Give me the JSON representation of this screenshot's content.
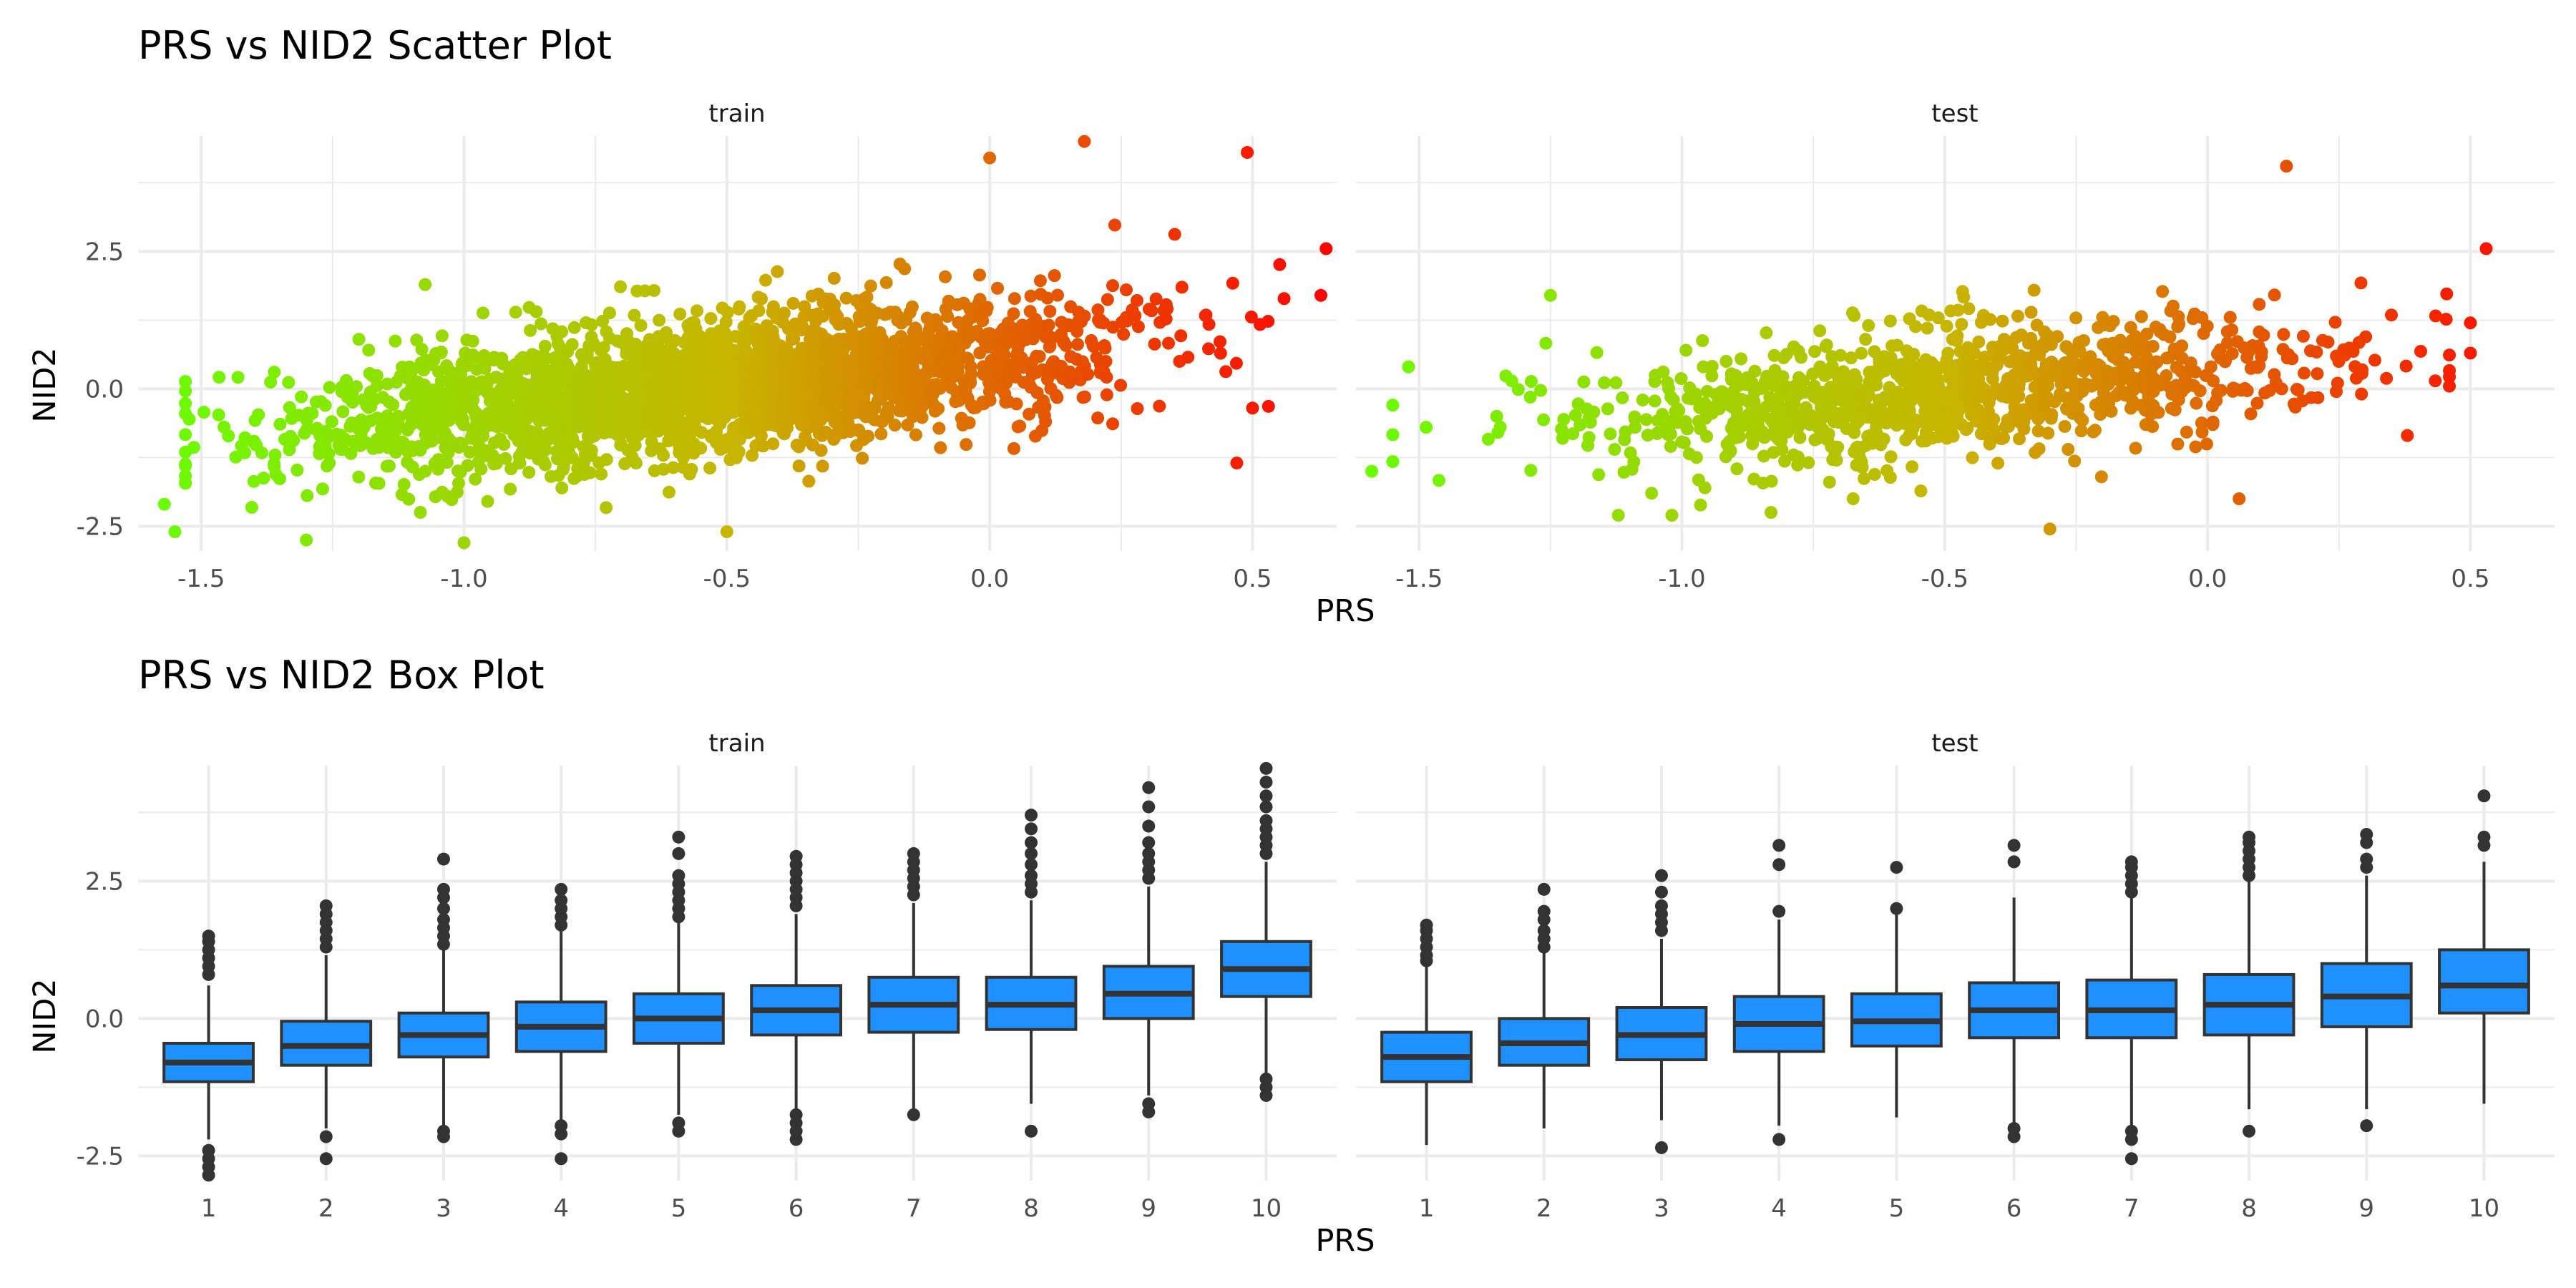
{
  "scatter": {
    "title": "PRS vs NID2 Scatter Plot",
    "xlabel": "PRS",
    "ylabel": "NID2"
  },
  "box": {
    "title": "PRS vs NID2 Box Plot",
    "xlabel": "PRS",
    "ylabel": "NID2"
  },
  "colors": {
    "low": "#66ff00",
    "mid": "#c8b400",
    "high": "#ff0000",
    "box_fill": "#1e90ff",
    "outline": "#333333",
    "grid": "#ebebeb"
  },
  "chart_data": [
    {
      "type": "scatter",
      "title": "PRS vs NID2 Scatter Plot",
      "xlabel": "PRS",
      "ylabel": "NID2",
      "xlim": [
        -1.62,
        0.66
      ],
      "ylim": [
        -2.95,
        4.6
      ],
      "x_ticks": [
        "-1.5",
        "-1.0",
        "-0.5",
        "0.0",
        "0.5"
      ],
      "y_ticks": [
        "-2.5",
        "0.0",
        "2.5"
      ],
      "grid": true,
      "color_by": "PRS",
      "facets": [
        {
          "name": "train",
          "n_points": 2600,
          "x_center": -0.55,
          "x_spread": 0.38,
          "x_min": -1.58,
          "x_max": 0.64,
          "trend_intercept": 0.6,
          "trend_slope": 1.0,
          "noise_sd": 0.62,
          "y_min": -2.9,
          "y_max": 4.5,
          "extreme_points": [
            {
              "x": -1.57,
              "y": -2.1
            },
            {
              "x": -1.55,
              "y": -2.6
            },
            {
              "x": -1.3,
              "y": -2.75
            },
            {
              "x": -1.2,
              "y": 0.9
            },
            {
              "x": -1.0,
              "y": -2.8
            },
            {
              "x": 0.18,
              "y": 4.5
            },
            {
              "x": 0.0,
              "y": 4.2
            },
            {
              "x": 0.49,
              "y": 4.3
            },
            {
              "x": 0.64,
              "y": 2.55
            },
            {
              "x": 0.63,
              "y": 1.7
            },
            {
              "x": 0.47,
              "y": -1.35
            },
            {
              "x": 0.5,
              "y": -0.35
            },
            {
              "x": -0.5,
              "y": -2.6
            }
          ]
        },
        {
          "name": "test",
          "n_points": 1100,
          "x_center": -0.48,
          "x_spread": 0.36,
          "x_min": -1.6,
          "x_max": 0.54,
          "trend_intercept": 0.35,
          "trend_slope": 0.8,
          "noise_sd": 0.58,
          "y_min": -2.6,
          "y_max": 4.1,
          "extreme_points": [
            {
              "x": -1.59,
              "y": -1.5
            },
            {
              "x": -1.52,
              "y": 0.4
            },
            {
              "x": -1.25,
              "y": 1.7
            },
            {
              "x": -0.3,
              "y": -2.55
            },
            {
              "x": 0.15,
              "y": 4.05
            },
            {
              "x": 0.53,
              "y": 2.55
            },
            {
              "x": 0.5,
              "y": 1.2
            },
            {
              "x": 0.5,
              "y": 0.65
            },
            {
              "x": 0.38,
              "y": -0.85
            },
            {
              "x": 0.06,
              "y": -2.0
            }
          ]
        }
      ]
    },
    {
      "type": "box",
      "title": "PRS vs NID2 Box Plot",
      "xlabel": "PRS",
      "ylabel": "NID2",
      "categories": [
        "1",
        "2",
        "3",
        "4",
        "5",
        "6",
        "7",
        "8",
        "9",
        "10"
      ],
      "ylim": [
        -2.95,
        4.6
      ],
      "y_ticks": [
        "-2.5",
        "0.0",
        "2.5"
      ],
      "grid": true,
      "facets": [
        {
          "name": "train",
          "boxes": [
            {
              "q1": -1.15,
              "median": -0.8,
              "q3": -0.45,
              "whisker_low": -2.2,
              "whisker_high": 0.6,
              "outliers": [
                -2.4,
                -2.55,
                -2.7,
                -2.85,
                0.8,
                0.95,
                1.1,
                1.25,
                1.4,
                1.5
              ]
            },
            {
              "q1": -0.85,
              "median": -0.5,
              "q3": -0.05,
              "whisker_low": -2.0,
              "whisker_high": 1.15,
              "outliers": [
                -2.15,
                -2.55,
                1.3,
                1.45,
                1.6,
                1.75,
                1.9,
                2.05
              ]
            },
            {
              "q1": -0.7,
              "median": -0.3,
              "q3": 0.1,
              "whisker_low": -1.95,
              "whisker_high": 1.25,
              "outliers": [
                -2.05,
                -2.15,
                1.35,
                1.5,
                1.65,
                1.8,
                2.0,
                2.2,
                2.35,
                2.9
              ]
            },
            {
              "q1": -0.6,
              "median": -0.15,
              "q3": 0.3,
              "whisker_low": -1.85,
              "whisker_high": 1.6,
              "outliers": [
                -1.95,
                -2.1,
                -2.55,
                1.7,
                1.85,
                2.0,
                2.15,
                2.35
              ]
            },
            {
              "q1": -0.45,
              "median": 0.0,
              "q3": 0.45,
              "whisker_low": -1.75,
              "whisker_high": 1.75,
              "outliers": [
                -1.9,
                -2.05,
                1.85,
                2.0,
                2.15,
                2.3,
                2.45,
                2.6,
                3.0,
                3.3
              ]
            },
            {
              "q1": -0.3,
              "median": 0.15,
              "q3": 0.6,
              "whisker_low": -1.65,
              "whisker_high": 1.9,
              "outliers": [
                -1.75,
                -1.9,
                -2.05,
                -2.2,
                2.05,
                2.2,
                2.35,
                2.5,
                2.65,
                2.8,
                2.95
              ]
            },
            {
              "q1": -0.25,
              "median": 0.25,
              "q3": 0.75,
              "whisker_low": -1.7,
              "whisker_high": 2.1,
              "outliers": [
                -1.75,
                2.25,
                2.4,
                2.55,
                2.7,
                2.85,
                3.0
              ]
            },
            {
              "q1": -0.2,
              "median": 0.25,
              "q3": 0.75,
              "whisker_low": -1.55,
              "whisker_high": 2.15,
              "outliers": [
                -2.05,
                2.3,
                2.45,
                2.6,
                2.8,
                3.0,
                3.2,
                3.45,
                3.7
              ]
            },
            {
              "q1": 0.0,
              "median": 0.45,
              "q3": 0.95,
              "whisker_low": -1.4,
              "whisker_high": 2.4,
              "outliers": [
                -1.55,
                -1.7,
                2.55,
                2.7,
                2.85,
                3.0,
                3.2,
                3.5,
                3.85,
                4.2
              ]
            },
            {
              "q1": 0.4,
              "median": 0.9,
              "q3": 1.4,
              "whisker_low": -1.0,
              "whisker_high": 2.85,
              "outliers": [
                -1.1,
                -1.25,
                -1.4,
                3.0,
                3.15,
                3.3,
                3.45,
                3.6,
                3.85,
                4.05,
                4.3,
                4.55
              ]
            }
          ]
        },
        {
          "name": "test",
          "boxes": [
            {
              "q1": -1.15,
              "median": -0.7,
              "q3": -0.25,
              "whisker_low": -2.3,
              "whisker_high": 0.95,
              "outliers": [
                1.05,
                1.15,
                1.3,
                1.45,
                1.6,
                1.7
              ]
            },
            {
              "q1": -0.85,
              "median": -0.45,
              "q3": 0.0,
              "whisker_low": -2.0,
              "whisker_high": 1.2,
              "outliers": [
                1.3,
                1.45,
                1.6,
                1.8,
                1.95,
                2.35
              ]
            },
            {
              "q1": -0.75,
              "median": -0.3,
              "q3": 0.2,
              "whisker_low": -1.85,
              "whisker_high": 1.45,
              "outliers": [
                -2.35,
                1.6,
                1.75,
                1.9,
                2.05,
                2.3,
                2.6
              ]
            },
            {
              "q1": -0.6,
              "median": -0.1,
              "q3": 0.4,
              "whisker_low": -1.95,
              "whisker_high": 1.8,
              "outliers": [
                -2.2,
                1.95,
                2.8,
                3.15
              ]
            },
            {
              "q1": -0.5,
              "median": -0.05,
              "q3": 0.45,
              "whisker_low": -1.8,
              "whisker_high": 1.95,
              "outliers": [
                2.0,
                2.75
              ]
            },
            {
              "q1": -0.35,
              "median": 0.15,
              "q3": 0.65,
              "whisker_low": -1.9,
              "whisker_high": 2.2,
              "outliers": [
                -2.0,
                -2.15,
                2.85,
                3.15
              ]
            },
            {
              "q1": -0.35,
              "median": 0.15,
              "q3": 0.7,
              "whisker_low": -1.95,
              "whisker_high": 2.2,
              "outliers": [
                -2.05,
                -2.2,
                -2.55,
                2.3,
                2.45,
                2.6,
                2.75,
                2.85
              ]
            },
            {
              "q1": -0.3,
              "median": 0.25,
              "q3": 0.8,
              "whisker_low": -1.65,
              "whisker_high": 2.5,
              "outliers": [
                -2.05,
                2.6,
                2.75,
                2.9,
                3.05,
                3.2,
                3.3
              ]
            },
            {
              "q1": -0.15,
              "median": 0.4,
              "q3": 1.0,
              "whisker_low": -1.65,
              "whisker_high": 2.6,
              "outliers": [
                -1.95,
                2.75,
                2.9,
                3.2,
                3.35
              ]
            },
            {
              "q1": 0.1,
              "median": 0.6,
              "q3": 1.25,
              "whisker_low": -1.55,
              "whisker_high": 2.85,
              "outliers": [
                3.15,
                3.3,
                4.05
              ]
            }
          ]
        }
      ]
    }
  ]
}
